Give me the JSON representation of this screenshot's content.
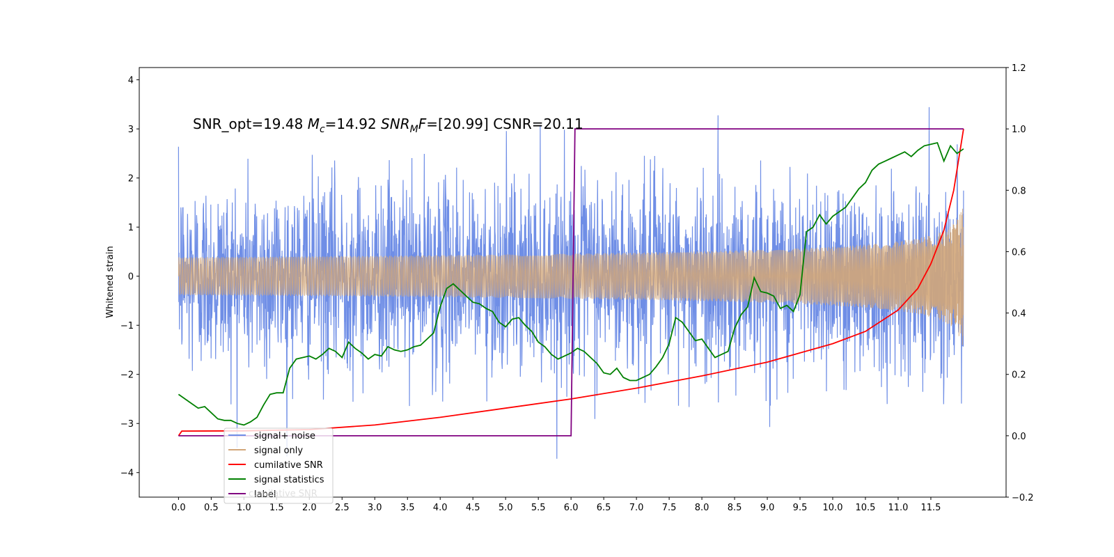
{
  "chart_data": {
    "type": "line",
    "annotation": "SNR_opt=19.48 $M_c$=14.92  $SNR_MF$=[20.99] CSNR=20.11",
    "annotation_parts": {
      "snr_opt": "SNR_opt=19.48 ",
      "mc_symbol": "M",
      "mc_sub": "c",
      "mc_value": "=14.92  ",
      "snr_symbol": "SNR",
      "snr_sub": "M",
      "snr_f": "F",
      "snr_value": "=[20.99] CSNR=20.11"
    },
    "xlabel": "",
    "ylabel_left": "Whitened strain",
    "ylabel_right": "",
    "xlim": [
      -0.6,
      12.65
    ],
    "ylim_left": [
      -4.5,
      4.25
    ],
    "ylim_right": [
      -0.2,
      1.2
    ],
    "x_ticks": [
      "0.0",
      "0.5",
      "1.0",
      "1.5",
      "2.0",
      "2.5",
      "3.0",
      "3.5",
      "4.0",
      "4.5",
      "5.0",
      "5.5",
      "6.0",
      "6.5",
      "7.0",
      "7.5",
      "8.0",
      "8.5",
      "9.0",
      "9.5",
      "10.0",
      "10.5",
      "11.0",
      "11.5"
    ],
    "y_ticks_left": [
      "4",
      "3",
      "2",
      "1",
      "0",
      "−1",
      "−2",
      "−3",
      "−4"
    ],
    "y_ticks_right": [
      "1.2",
      "1.0",
      "0.8",
      "0.6",
      "0.4",
      "0.2",
      "0.0",
      "−0.2"
    ],
    "grid": false,
    "legend_position": "lower-left",
    "series": [
      {
        "name": "signal+ noise",
        "color": "#6f8ee6",
        "axis": "left",
        "description_range": [
          -3.6,
          3.85
        ],
        "x_range": [
          0,
          12
        ]
      },
      {
        "name": "signal only",
        "color": "#d2a679",
        "axis": "left",
        "chirp_end_amplitude": 1.6,
        "x_range": [
          0,
          12
        ]
      },
      {
        "name": "cumilative SNR",
        "color": "#ff0000",
        "axis": "right",
        "x": [
          0.0,
          0.05,
          1.0,
          2.0,
          3.0,
          4.0,
          5.0,
          6.0,
          7.0,
          8.0,
          9.0,
          10.0,
          10.5,
          11.0,
          11.3,
          11.5,
          11.7,
          11.85,
          12.0
        ],
        "values": [
          0.0,
          0.015,
          0.016,
          0.02,
          0.035,
          0.06,
          0.09,
          0.12,
          0.155,
          0.195,
          0.24,
          0.3,
          0.34,
          0.41,
          0.48,
          0.56,
          0.67,
          0.8,
          1.0
        ]
      },
      {
        "name": "signal statistics",
        "color": "#008000",
        "axis": "right",
        "x": [
          0.0,
          0.1,
          0.2,
          0.3,
          0.4,
          0.5,
          0.6,
          0.7,
          0.8,
          0.9,
          1.0,
          1.1,
          1.2,
          1.3,
          1.4,
          1.5,
          1.6,
          1.7,
          1.8,
          1.9,
          2.0,
          2.1,
          2.2,
          2.3,
          2.4,
          2.5,
          2.6,
          2.7,
          2.8,
          2.9,
          3.0,
          3.1,
          3.2,
          3.3,
          3.4,
          3.5,
          3.6,
          3.7,
          3.8,
          3.9,
          4.0,
          4.1,
          4.2,
          4.3,
          4.4,
          4.5,
          4.6,
          4.7,
          4.8,
          4.9,
          5.0,
          5.1,
          5.2,
          5.3,
          5.4,
          5.5,
          5.6,
          5.7,
          5.8,
          5.9,
          6.0,
          6.1,
          6.2,
          6.3,
          6.4,
          6.5,
          6.6,
          6.7,
          6.8,
          6.9,
          7.0,
          7.1,
          7.2,
          7.3,
          7.4,
          7.5,
          7.6,
          7.7,
          7.8,
          7.9,
          8.0,
          8.1,
          8.2,
          8.3,
          8.4,
          8.5,
          8.6,
          8.7,
          8.8,
          8.9,
          9.0,
          9.1,
          9.2,
          9.3,
          9.4,
          9.5,
          9.6,
          9.7,
          9.8,
          9.9,
          10.0,
          10.1,
          10.2,
          10.3,
          10.4,
          10.5,
          10.6,
          10.7,
          10.8,
          10.9,
          11.0,
          11.1,
          11.2,
          11.3,
          11.4,
          11.5,
          11.6,
          11.7,
          11.8,
          11.9,
          12.0
        ],
        "values": [
          0.135,
          0.12,
          0.105,
          0.09,
          0.095,
          0.075,
          0.055,
          0.05,
          0.05,
          0.04,
          0.035,
          0.045,
          0.06,
          0.1,
          0.135,
          0.14,
          0.14,
          0.22,
          0.25,
          0.255,
          0.26,
          0.25,
          0.265,
          0.285,
          0.275,
          0.255,
          0.305,
          0.285,
          0.27,
          0.25,
          0.265,
          0.26,
          0.29,
          0.28,
          0.275,
          0.28,
          0.29,
          0.295,
          0.315,
          0.335,
          0.42,
          0.48,
          0.495,
          0.475,
          0.455,
          0.435,
          0.43,
          0.415,
          0.405,
          0.37,
          0.355,
          0.38,
          0.385,
          0.36,
          0.34,
          0.305,
          0.29,
          0.265,
          0.25,
          0.26,
          0.27,
          0.285,
          0.275,
          0.255,
          0.235,
          0.205,
          0.2,
          0.22,
          0.19,
          0.18,
          0.18,
          0.19,
          0.2,
          0.225,
          0.255,
          0.3,
          0.385,
          0.37,
          0.34,
          0.31,
          0.315,
          0.285,
          0.255,
          0.265,
          0.275,
          0.35,
          0.395,
          0.42,
          0.515,
          0.47,
          0.465,
          0.455,
          0.415,
          0.425,
          0.405,
          0.46,
          0.665,
          0.68,
          0.72,
          0.69,
          0.715,
          0.73,
          0.745,
          0.775,
          0.805,
          0.825,
          0.865,
          0.885,
          0.895,
          0.905,
          0.915,
          0.925,
          0.91,
          0.93,
          0.945,
          0.95,
          0.955,
          0.895,
          0.945,
          0.92,
          0.935
        ]
      },
      {
        "name": "label",
        "color": "#800080",
        "axis": "right",
        "x": [
          0.0,
          6.0,
          6.06,
          12.0
        ],
        "values": [
          0.0,
          0.0,
          1.0,
          1.0
        ]
      }
    ],
    "legend_overlap_text": "cumilative SNR"
  }
}
